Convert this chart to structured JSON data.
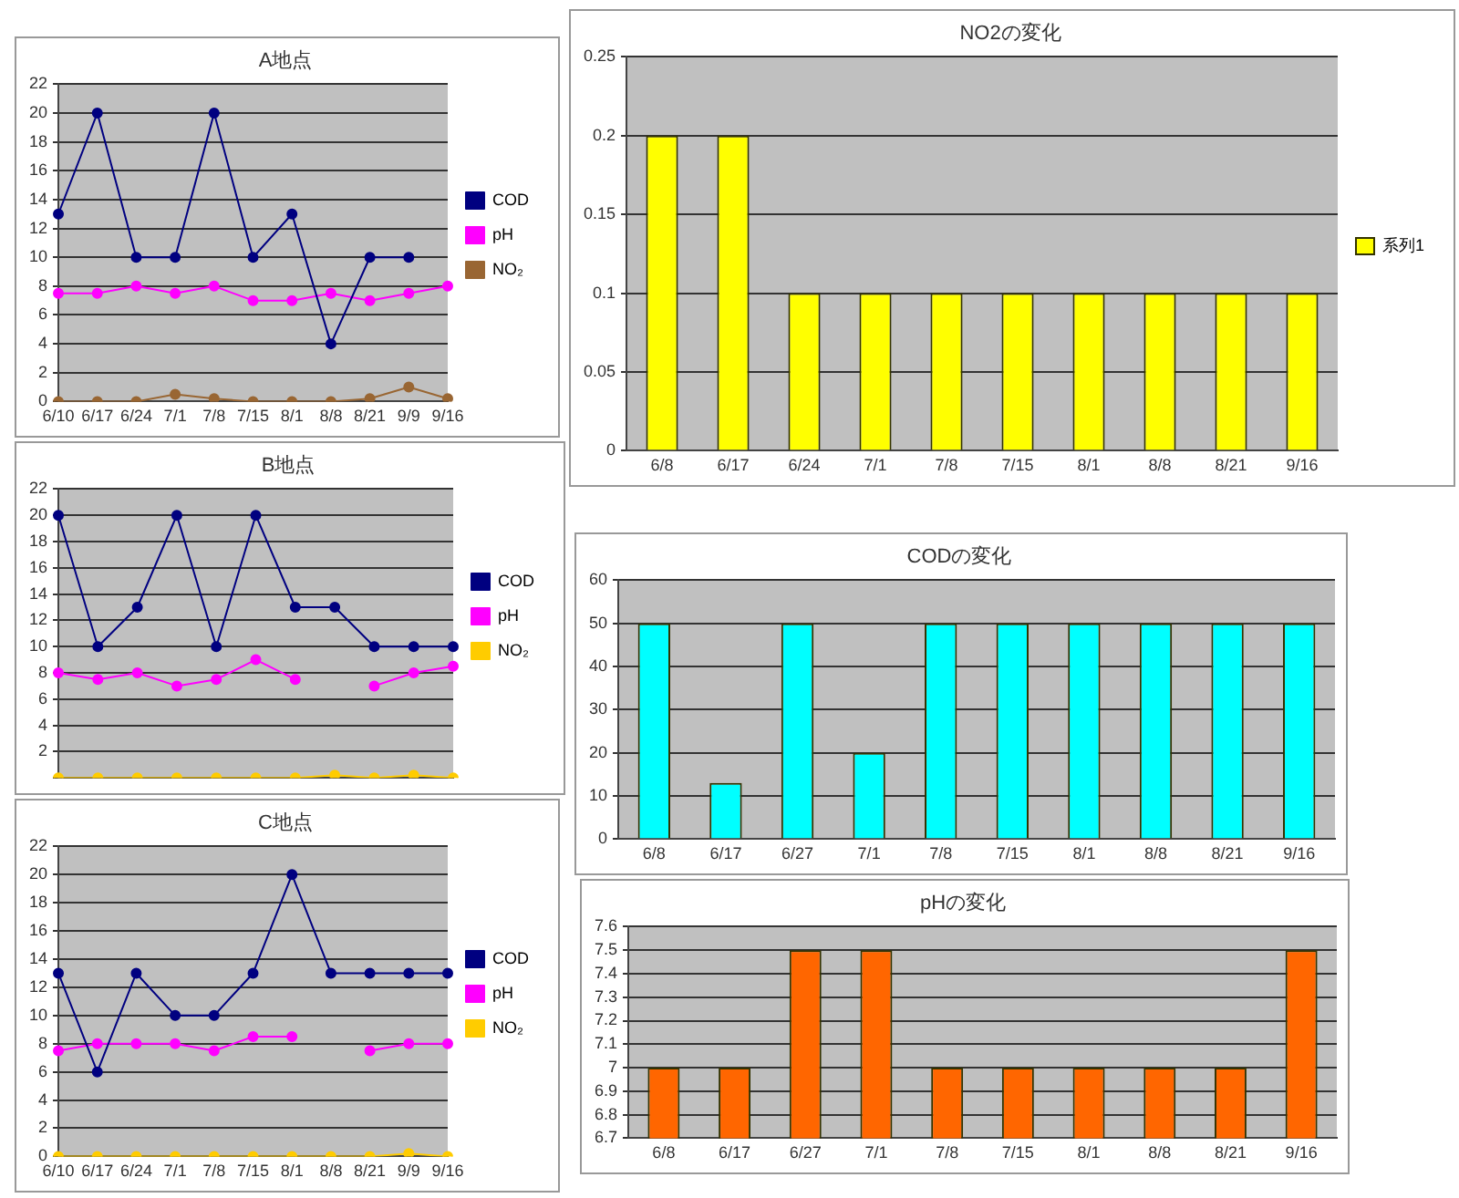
{
  "chart_data": [
    {
      "type": "line",
      "title": "A地点",
      "categories": [
        "6/10",
        "6/17",
        "6/24",
        "7/1",
        "7/8",
        "7/15",
        "8/1",
        "8/8",
        "8/21",
        "9/9",
        "9/16"
      ],
      "series": [
        {
          "name": "COD",
          "color": "#000080",
          "values": [
            13,
            20,
            10,
            10,
            20,
            10,
            13,
            4,
            10,
            10,
            null
          ]
        },
        {
          "name": "pH",
          "color": "#ff00ff",
          "values": [
            7.5,
            7.5,
            8,
            7.5,
            8,
            7,
            7,
            7.5,
            7,
            7.5,
            8
          ]
        },
        {
          "name": "NO₂",
          "color": "#996633",
          "values": [
            0,
            0,
            0,
            0.5,
            0.2,
            0,
            0,
            0,
            0.2,
            1,
            0.2
          ]
        }
      ],
      "ylim": [
        0,
        22
      ],
      "yticks": [
        0,
        2,
        4,
        6,
        8,
        10,
        12,
        14,
        16,
        18,
        20,
        22
      ],
      "grid": "y",
      "legend": "right",
      "marker": "circle"
    },
    {
      "type": "bar",
      "title": "NO2の変化",
      "categories": [
        "6/8",
        "6/17",
        "6/24",
        "7/1",
        "7/8",
        "7/15",
        "8/1",
        "8/8",
        "8/21",
        "9/16"
      ],
      "series": [
        {
          "name": "系列1",
          "color": "#ffff00",
          "values": [
            0.2,
            0.2,
            0.1,
            0.1,
            0.1,
            0.1,
            0.1,
            0.1,
            0.1,
            0.1
          ]
        }
      ],
      "ylim": [
        0,
        0.25
      ],
      "yticks": [
        0,
        0.05,
        0.1,
        0.15,
        0.2,
        0.25
      ],
      "grid": "y",
      "legend": "right"
    },
    {
      "type": "line",
      "title": "B地点",
      "categories": [
        null,
        null,
        null,
        null,
        null,
        null,
        null,
        null,
        null,
        null,
        null
      ],
      "series": [
        {
          "name": "COD",
          "color": "#000080",
          "values": [
            20,
            10,
            13,
            20,
            10,
            20,
            13,
            13,
            10,
            10,
            10
          ]
        },
        {
          "name": "pH",
          "color": "#ff00ff",
          "values": [
            8,
            7.5,
            8,
            7,
            7.5,
            9,
            7.5,
            null,
            7,
            8,
            8.5
          ]
        },
        {
          "name": "NO₂",
          "color": "#ffcc00",
          "values": [
            0,
            0,
            0,
            0,
            0,
            0,
            0,
            0.2,
            0,
            0.2,
            0
          ]
        }
      ],
      "ylim": [
        0,
        22
      ],
      "yticks": [
        {
          "value": 0,
          "label": null
        },
        2,
        4,
        6,
        8,
        10,
        12,
        14,
        16,
        18,
        20,
        22
      ],
      "grid": "y",
      "legend": "right",
      "marker": "circle",
      "tick_labels": "y"
    },
    {
      "type": "bar",
      "title": "CODの変化",
      "categories": [
        "6/8",
        "6/17",
        "6/27",
        "7/1",
        "7/8",
        "7/15",
        "8/1",
        "8/8",
        "8/21",
        "9/16"
      ],
      "series": [
        {
          "color": "#00ffff",
          "values": [
            50,
            13,
            50,
            20,
            50,
            50,
            50,
            50,
            50,
            50
          ]
        }
      ],
      "ylim": [
        0,
        60
      ],
      "yticks": [
        0,
        10,
        20,
        30,
        40,
        50,
        60
      ],
      "grid": "y"
    },
    {
      "type": "line",
      "title": "C地点",
      "categories": [
        "6/10",
        "6/17",
        "6/24",
        "7/1",
        "7/8",
        "7/15",
        "8/1",
        "8/8",
        "8/21",
        "9/9",
        "9/16"
      ],
      "series": [
        {
          "name": "COD",
          "color": "#000080",
          "values": [
            13,
            6,
            13,
            10,
            10,
            13,
            20,
            13,
            13,
            13,
            13
          ]
        },
        {
          "name": "pH",
          "color": "#ff00ff",
          "values": [
            7.5,
            8,
            8,
            8,
            7.5,
            8.5,
            8.5,
            null,
            7.5,
            8,
            8
          ]
        },
        {
          "name": "NO₂",
          "color": "#ffcc00",
          "values": [
            0,
            0,
            0,
            0,
            0,
            0,
            0,
            0,
            0,
            0.2,
            0
          ]
        }
      ],
      "ylim": [
        0,
        22
      ],
      "yticks": [
        0,
        2,
        4,
        6,
        8,
        10,
        12,
        14,
        16,
        18,
        20,
        22
      ],
      "grid": "y",
      "legend": "right",
      "marker": "circle"
    },
    {
      "type": "bar",
      "title": "pHの変化",
      "categories": [
        "6/8",
        "6/17",
        "6/27",
        "7/1",
        "7/8",
        "7/15",
        "8/1",
        "8/8",
        "8/21",
        "9/16"
      ],
      "series": [
        {
          "color": "#ff6600",
          "values": [
            7,
            7,
            7.5,
            7.5,
            7,
            7,
            7,
            7,
            7,
            7.5
          ]
        }
      ],
      "ylim": [
        6.7,
        7.6
      ],
      "yticks": [
        6.7,
        6.8,
        6.9,
        7,
        7.1,
        7.2,
        7.3,
        7.4,
        7.5,
        7.6
      ],
      "grid": "y"
    }
  ]
}
